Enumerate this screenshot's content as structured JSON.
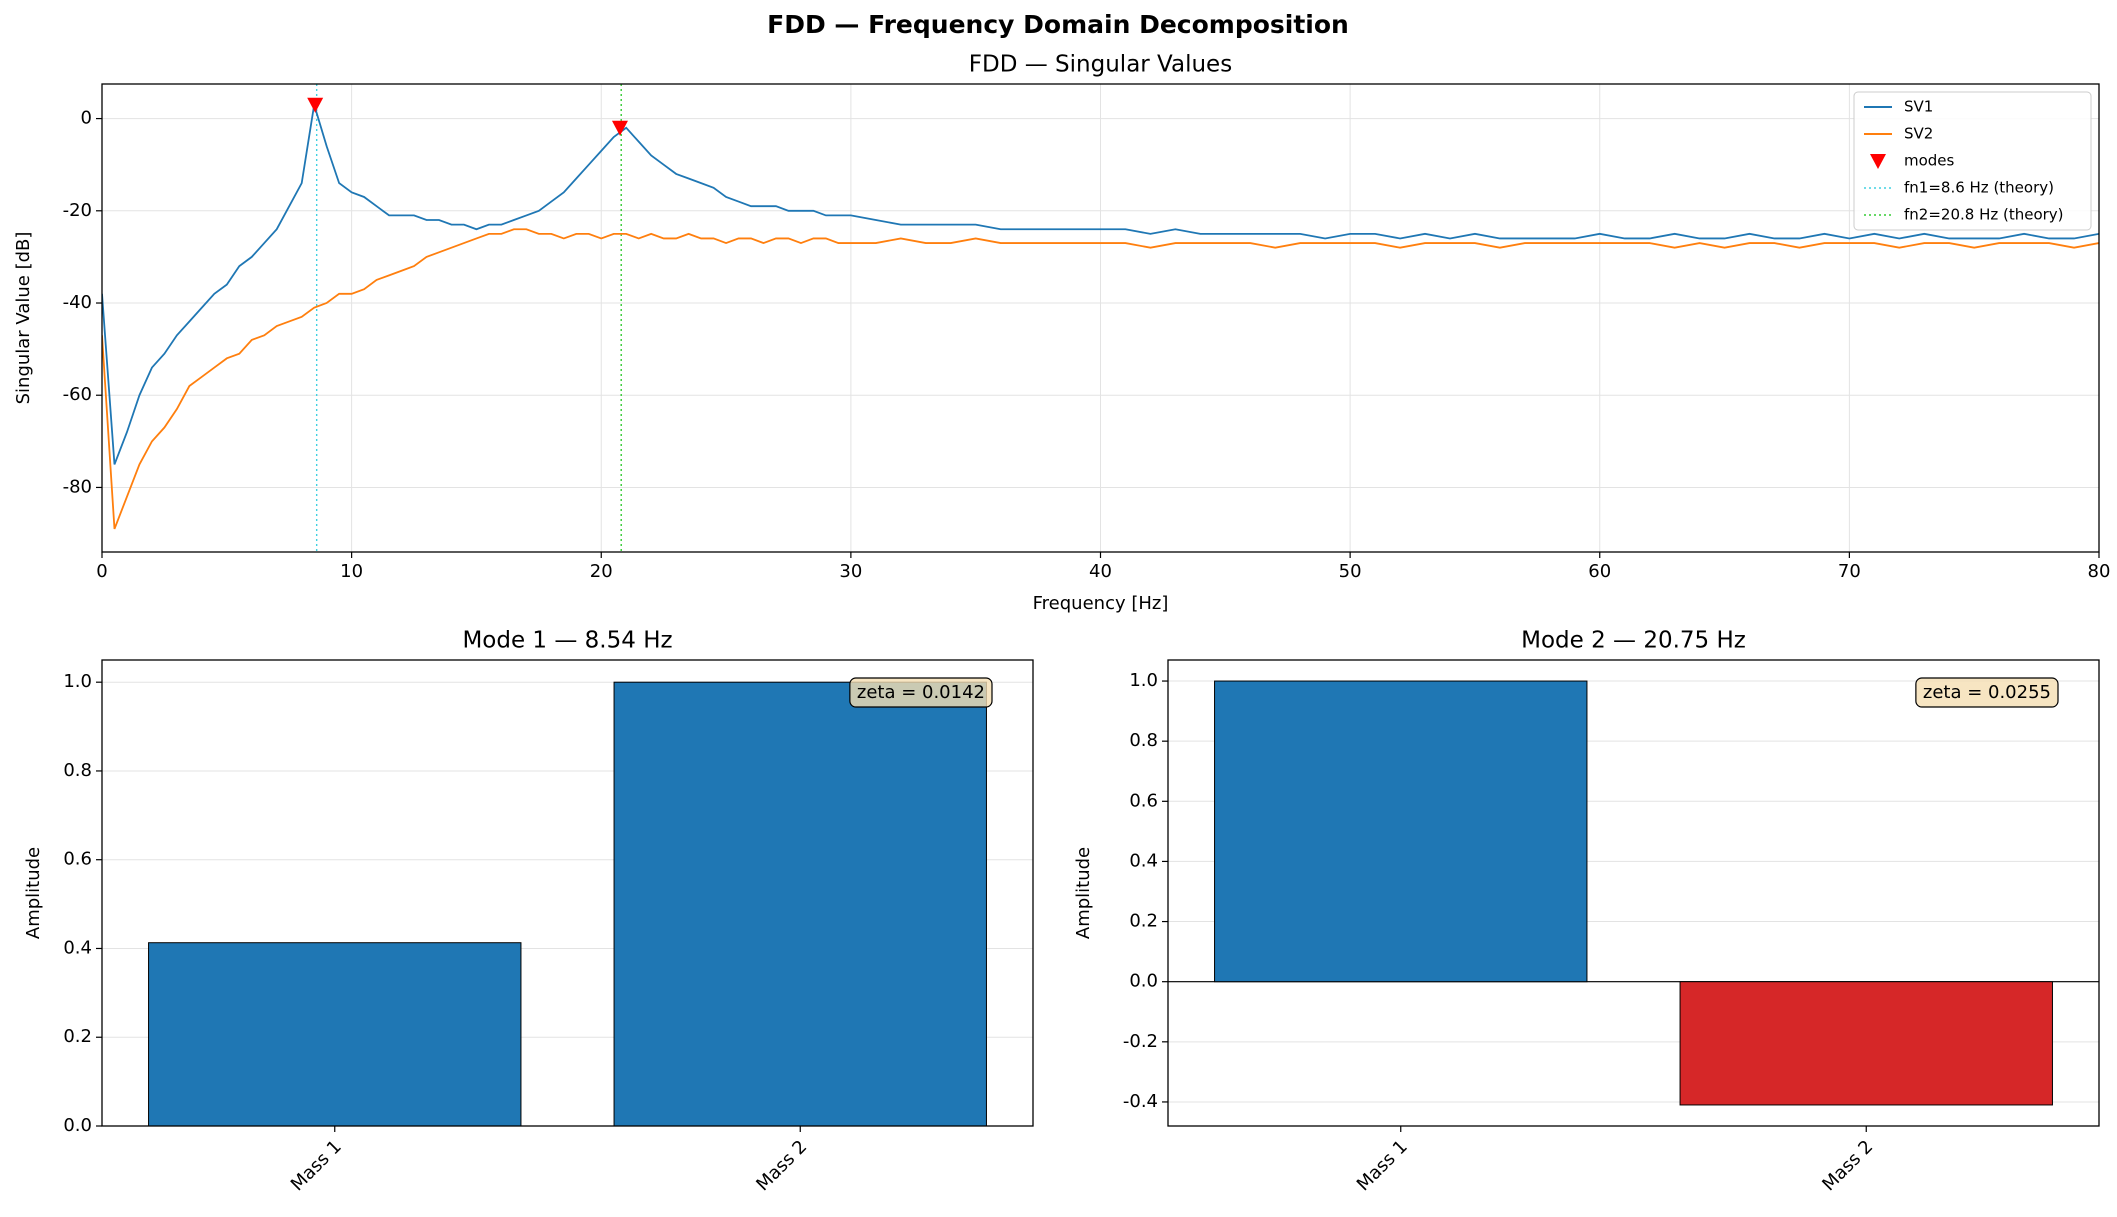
{
  "title": "FDD — Frequency Domain Decomposition",
  "chart_data": [
    {
      "type": "line",
      "title": "FDD — Singular Values",
      "xlabel": "Frequency [Hz]",
      "ylabel": "Singular Value [dB]",
      "x": [
        0,
        0.5,
        1,
        1.5,
        2,
        2.5,
        3,
        3.5,
        4,
        4.5,
        5,
        5.5,
        6,
        6.5,
        7,
        7.5,
        8,
        8.5,
        9,
        9.5,
        10,
        10.5,
        11,
        11.5,
        12,
        12.5,
        13,
        13.5,
        14,
        14.5,
        15,
        15.5,
        16,
        16.5,
        17,
        17.5,
        18,
        18.5,
        19,
        19.5,
        20,
        20.5,
        21,
        21.5,
        22,
        22.5,
        23,
        23.5,
        24,
        24.5,
        25,
        25.5,
        26,
        26.5,
        27,
        27.5,
        28,
        28.5,
        29,
        29.5,
        30,
        31,
        32,
        33,
        34,
        35,
        36,
        37,
        38,
        39,
        40,
        41,
        42,
        43,
        44,
        45,
        46,
        47,
        48,
        49,
        50,
        51,
        52,
        53,
        54,
        55,
        56,
        57,
        58,
        59,
        60,
        61,
        62,
        63,
        64,
        65,
        66,
        67,
        68,
        69,
        70,
        71,
        72,
        73,
        74,
        75,
        76,
        77,
        78,
        79,
        80
      ],
      "series": [
        {
          "name": "SV1",
          "color": "#1f77b4",
          "values": [
            -38,
            -75,
            -68,
            -60,
            -54,
            -51,
            -47,
            -44,
            -41,
            -38,
            -36,
            -32,
            -30,
            -27,
            -24,
            -19,
            -14,
            3,
            -6,
            -14,
            -16,
            -17,
            -19,
            -21,
            -21,
            -21,
            -22,
            -22,
            -23,
            -23,
            -24,
            -23,
            -23,
            -22,
            -21,
            -20,
            -18,
            -16,
            -13,
            -10,
            -7,
            -4,
            -2,
            -5,
            -8,
            -10,
            -12,
            -13,
            -14,
            -15,
            -17,
            -18,
            -19,
            -19,
            -19,
            -20,
            -20,
            -20,
            -21,
            -21,
            -21,
            -22,
            -23,
            -23,
            -23,
            -23,
            -24,
            -24,
            -24,
            -24,
            -24,
            -24,
            -25,
            -24,
            -25,
            -25,
            -25,
            -25,
            -25,
            -26,
            -25,
            -25,
            -26,
            -25,
            -26,
            -25,
            -26,
            -26,
            -26,
            -26,
            -25,
            -26,
            -26,
            -25,
            -26,
            -26,
            -25,
            -26,
            -26,
            -25,
            -26,
            -25,
            -26,
            -25,
            -26,
            -26,
            -26,
            -25,
            -26,
            -26,
            -25
          ]
        },
        {
          "name": "SV2",
          "color": "#ff7f0e",
          "values": [
            -47,
            -89,
            -82,
            -75,
            -70,
            -67,
            -63,
            -58,
            -56,
            -54,
            -52,
            -51,
            -48,
            -47,
            -45,
            -44,
            -43,
            -41,
            -40,
            -38,
            -38,
            -37,
            -35,
            -34,
            -33,
            -32,
            -30,
            -29,
            -28,
            -27,
            -26,
            -25,
            -25,
            -24,
            -24,
            -25,
            -25,
            -26,
            -25,
            -25,
            -26,
            -25,
            -25,
            -26,
            -25,
            -26,
            -26,
            -25,
            -26,
            -26,
            -27,
            -26,
            -26,
            -27,
            -26,
            -26,
            -27,
            -26,
            -26,
            -27,
            -27,
            -27,
            -26,
            -27,
            -27,
            -26,
            -27,
            -27,
            -27,
            -27,
            -27,
            -27,
            -28,
            -27,
            -27,
            -27,
            -27,
            -28,
            -27,
            -27,
            -27,
            -27,
            -28,
            -27,
            -27,
            -27,
            -28,
            -27,
            -27,
            -27,
            -27,
            -27,
            -27,
            -28,
            -27,
            -28,
            -27,
            -27,
            -28,
            -27,
            -27,
            -27,
            -28,
            -27,
            -27,
            -28,
            -27,
            -27,
            -27,
            -28,
            -27
          ]
        }
      ],
      "modes": {
        "name": "modes",
        "color": "#ff0000",
        "x": [
          8.54,
          20.75
        ],
        "values": [
          3,
          -2
        ]
      },
      "vlines": [
        {
          "name": "fn1=8.6 Hz (theory)",
          "x": 8.6,
          "color": "#40d0e0"
        },
        {
          "name": "fn2=20.8 Hz (theory)",
          "x": 20.8,
          "color": "#33cc33"
        }
      ],
      "xlim": [
        0,
        80
      ],
      "xticks": [
        0,
        10,
        20,
        30,
        40,
        50,
        60,
        70,
        80
      ],
      "ylim": [
        -94,
        7.5
      ],
      "yticks": [
        -80,
        -60,
        -40,
        -20,
        0
      ],
      "grid": "both",
      "legend": "upper right"
    },
    {
      "type": "bar",
      "title": "Mode 1 — 8.54 Hz",
      "ylabel": "Amplitude",
      "categories": [
        "Mass 1",
        "Mass 2"
      ],
      "values": [
        0.413,
        1.0
      ],
      "colors": [
        "#1f77b4",
        "#1f77b4"
      ],
      "ylim": [
        0,
        1.05
      ],
      "yticks": [
        {
          "value": 0,
          "label": "0.0"
        },
        0.2,
        0.4,
        0.6,
        0.8,
        {
          "value": 1,
          "label": "1.0"
        }
      ],
      "annotation": "zeta = 0.0142",
      "grid": "y"
    },
    {
      "type": "bar",
      "title": "Mode 2 — 20.75 Hz",
      "ylabel": "Amplitude",
      "categories": [
        "Mass 1",
        "Mass 2"
      ],
      "values": [
        1.0,
        -0.41
      ],
      "colors": [
        "#1f77b4",
        "#d62728"
      ],
      "ylim": [
        -0.48,
        1.07
      ],
      "yticks": [
        -0.4,
        -0.2,
        {
          "value": 0,
          "label": "0.0"
        },
        0.2,
        0.4,
        0.6,
        0.8,
        {
          "value": 1,
          "label": "1.0"
        }
      ],
      "annotation": "zeta = 0.0255",
      "grid": "y"
    }
  ]
}
